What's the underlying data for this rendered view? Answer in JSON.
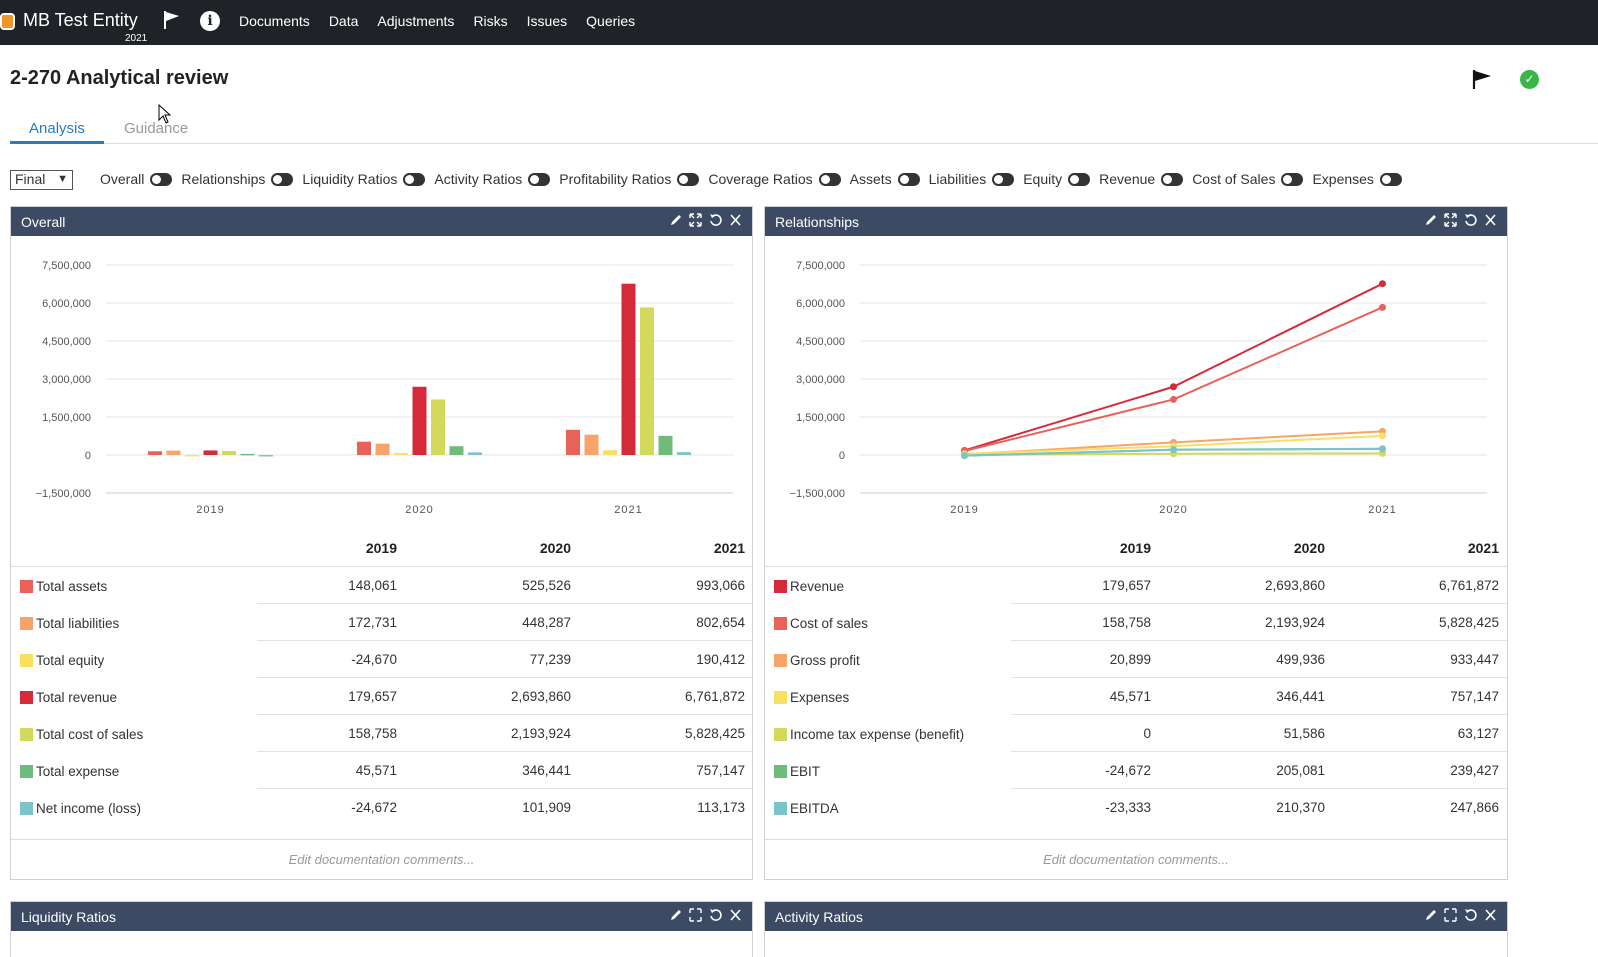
{
  "topbar": {
    "entity_name": "MB Test Entity",
    "entity_year": "2021",
    "entity_color": "#f0932b",
    "nav": [
      "Documents",
      "Data",
      "Adjustments",
      "Risks",
      "Issues",
      "Queries"
    ]
  },
  "page": {
    "title": "2-270 Analytical review",
    "tabs": [
      "Analysis",
      "Guidance"
    ]
  },
  "filters": {
    "select_value": "Final",
    "toggles": [
      "Overall",
      "Relationships",
      "Liquidity Ratios",
      "Activity Ratios",
      "Profitability Ratios",
      "Coverage Ratios",
      "Assets",
      "Liabilities",
      "Equity",
      "Revenue",
      "Cost of Sales",
      "Expenses"
    ]
  },
  "comments_placeholder": "Edit documentation comments...",
  "overall": {
    "title": "Overall",
    "years": [
      "2019",
      "2020",
      "2021"
    ],
    "rows": [
      {
        "label": "Total assets",
        "color": "#e8625a",
        "values": [
          "148,061",
          "525,526",
          "993,066"
        ]
      },
      {
        "label": "Total liabilities",
        "color": "#f6a46a",
        "values": [
          "172,731",
          "448,287",
          "802,654"
        ]
      },
      {
        "label": "Total equity",
        "color": "#f8e060",
        "values": [
          "-24,670",
          "77,239",
          "190,412"
        ]
      },
      {
        "label": "Total revenue",
        "color": "#d42a3a",
        "values": [
          "179,657",
          "2,693,860",
          "6,761,872"
        ]
      },
      {
        "label": "Total cost of sales",
        "color": "#d3d95a",
        "values": [
          "158,758",
          "2,193,924",
          "5,828,425"
        ]
      },
      {
        "label": "Total expense",
        "color": "#6fbb7a",
        "values": [
          "45,571",
          "346,441",
          "757,147"
        ]
      },
      {
        "label": "Net income (loss)",
        "color": "#7cc4cc",
        "values": [
          "-24,672",
          "101,909",
          "113,173"
        ]
      }
    ]
  },
  "relationships": {
    "title": "Relationships",
    "years": [
      "2019",
      "2020",
      "2021"
    ],
    "rows": [
      {
        "label": "Revenue",
        "color": "#d42a3a",
        "values": [
          "179,657",
          "2,693,860",
          "6,761,872"
        ]
      },
      {
        "label": "Cost of sales",
        "color": "#e8625a",
        "values": [
          "158,758",
          "2,193,924",
          "5,828,425"
        ]
      },
      {
        "label": "Gross profit",
        "color": "#f6a46a",
        "values": [
          "20,899",
          "499,936",
          "933,447"
        ]
      },
      {
        "label": "Expenses",
        "color": "#f8e060",
        "values": [
          "45,571",
          "346,441",
          "757,147"
        ]
      },
      {
        "label": "Income tax expense (benefit)",
        "color": "#d3d95a",
        "values": [
          "0",
          "51,586",
          "63,127"
        ]
      },
      {
        "label": "EBIT",
        "color": "#6fbb7a",
        "values": [
          "-24,672",
          "205,081",
          "239,427"
        ]
      },
      {
        "label": "EBITDA",
        "color": "#7cc4cc",
        "values": [
          "-23,333",
          "210,370",
          "247,866"
        ]
      }
    ]
  },
  "bottom_panels": [
    "Liquidity Ratios",
    "Activity Ratios"
  ],
  "chart_data": [
    {
      "type": "bar",
      "categories": [
        "2019",
        "2020",
        "2021"
      ],
      "ylim": [
        -1500000,
        7500000
      ],
      "yticks": [
        "7,500,000",
        "6,000,000",
        "4,500,000",
        "3,000,000",
        "1,500,000",
        "0",
        "−1,500,000"
      ],
      "series": [
        {
          "name": "Total assets",
          "color": "#e8625a",
          "values": [
            148061,
            525526,
            993066
          ]
        },
        {
          "name": "Total liabilities",
          "color": "#f6a46a",
          "values": [
            172731,
            448287,
            802654
          ]
        },
        {
          "name": "Total equity",
          "color": "#f8e060",
          "values": [
            -24670,
            77239,
            190412
          ]
        },
        {
          "name": "Total revenue",
          "color": "#d42a3a",
          "values": [
            179657,
            2693860,
            6761872
          ]
        },
        {
          "name": "Total cost of sales",
          "color": "#d3d95a",
          "values": [
            158758,
            2193924,
            5828425
          ]
        },
        {
          "name": "Total expense",
          "color": "#6fbb7a",
          "values": [
            45571,
            346441,
            757147
          ]
        },
        {
          "name": "Net income (loss)",
          "color": "#7cc4cc",
          "values": [
            -24672,
            101909,
            113173
          ]
        }
      ]
    },
    {
      "type": "line",
      "categories": [
        "2019",
        "2020",
        "2021"
      ],
      "ylim": [
        -1500000,
        7500000
      ],
      "yticks": [
        "7,500,000",
        "6,000,000",
        "4,500,000",
        "3,000,000",
        "1,500,000",
        "0",
        "−1,500,000"
      ],
      "series": [
        {
          "name": "Revenue",
          "color": "#d42a3a",
          "values": [
            179657,
            2693860,
            6761872
          ]
        },
        {
          "name": "Cost of sales",
          "color": "#e8625a",
          "values": [
            158758,
            2193924,
            5828425
          ]
        },
        {
          "name": "Gross profit",
          "color": "#f6a46a",
          "values": [
            20899,
            499936,
            933447
          ]
        },
        {
          "name": "Expenses",
          "color": "#f8e060",
          "values": [
            45571,
            346441,
            757147
          ]
        },
        {
          "name": "Income tax expense (benefit)",
          "color": "#d3d95a",
          "values": [
            0,
            51586,
            63127
          ]
        },
        {
          "name": "EBIT",
          "color": "#6fbb7a",
          "values": [
            -24672,
            205081,
            239427
          ]
        },
        {
          "name": "EBITDA",
          "color": "#7cc4cc",
          "values": [
            -23333,
            210370,
            247866
          ]
        }
      ]
    }
  ]
}
